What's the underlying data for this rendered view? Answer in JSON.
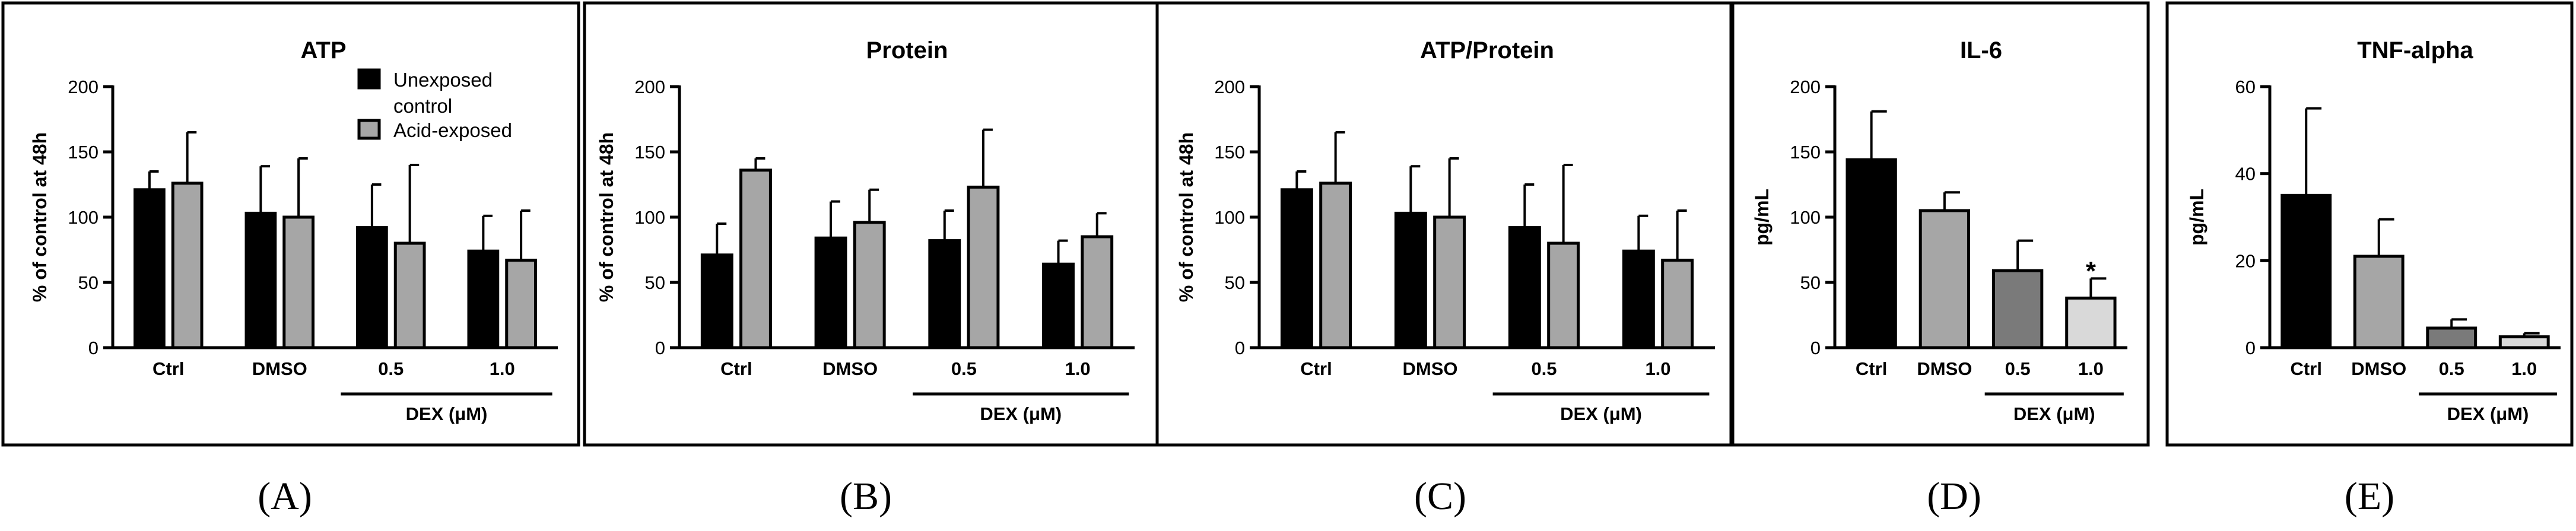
{
  "figure": {
    "panel_letters": [
      "(A)",
      "(B)",
      "(C)",
      "(D)",
      "(E)"
    ]
  },
  "chart_data": [
    {
      "type": "bar",
      "title": "ATP",
      "ylabel": "% of control at 48h",
      "xlabel": "",
      "ylim": [
        0,
        200
      ],
      "yticks": [
        0,
        50,
        100,
        150,
        200
      ],
      "categories": [
        "Ctrl",
        "DMSO",
        "0.5",
        "1.0"
      ],
      "group_label": "DEX (μM)",
      "group_categories": [
        "0.5",
        "1.0"
      ],
      "legend": [
        "Unexposed control",
        "Acid-exposed"
      ],
      "series": [
        {
          "name": "Unexposed control",
          "color": "#000000",
          "values": [
            121,
            103,
            92,
            74
          ],
          "errors": [
            14,
            36,
            33,
            27
          ]
        },
        {
          "name": "Acid-exposed",
          "color": "#a6a6a6",
          "values": [
            126,
            100,
            80,
            67
          ],
          "errors": [
            39,
            45,
            60,
            38
          ]
        }
      ]
    },
    {
      "type": "bar",
      "title": "Protein",
      "ylabel": "% of control at 48h",
      "xlabel": "",
      "ylim": [
        0,
        200
      ],
      "yticks": [
        0,
        50,
        100,
        150,
        200
      ],
      "categories": [
        "Ctrl",
        "DMSO",
        "0.5",
        "1.0"
      ],
      "group_label": "DEX (μM)",
      "group_categories": [
        "0.5",
        "1.0"
      ],
      "series": [
        {
          "name": "Unexposed control",
          "color": "#000000",
          "values": [
            71,
            84,
            82,
            64
          ],
          "errors": [
            24,
            28,
            23,
            18
          ]
        },
        {
          "name": "Acid-exposed",
          "color": "#a6a6a6",
          "values": [
            136,
            96,
            123,
            85
          ],
          "errors": [
            9,
            25,
            44,
            18
          ]
        }
      ]
    },
    {
      "type": "bar",
      "title": "ATP/Protein",
      "ylabel": "% of control at 48h",
      "xlabel": "",
      "ylim": [
        0,
        200
      ],
      "yticks": [
        0,
        50,
        100,
        150,
        200
      ],
      "categories": [
        "Ctrl",
        "DMSO",
        "0.5",
        "1.0"
      ],
      "group_label": "DEX (μM)",
      "group_categories": [
        "0.5",
        "1.0"
      ],
      "series": [
        {
          "name": "Unexposed control",
          "color": "#000000",
          "values": [
            121,
            103,
            92,
            74
          ],
          "errors": [
            14,
            36,
            33,
            27
          ]
        },
        {
          "name": "Acid-exposed",
          "color": "#a6a6a6",
          "values": [
            126,
            100,
            80,
            67
          ],
          "errors": [
            39,
            45,
            60,
            38
          ]
        }
      ]
    },
    {
      "type": "bar",
      "title": "IL-6",
      "ylabel": "pg/mL",
      "xlabel": "",
      "ylim": [
        0,
        200
      ],
      "yticks": [
        0,
        50,
        100,
        150,
        200
      ],
      "categories": [
        "Ctrl",
        "DMSO",
        "0.5",
        "1.0"
      ],
      "group_label": "DEX (μM)",
      "group_categories": [
        "0.5",
        "1.0"
      ],
      "significance": [
        "",
        "",
        "",
        "*"
      ],
      "series": [
        {
          "name": "IL-6",
          "colors": [
            "#000000",
            "#a6a6a6",
            "#7a7a7a",
            "#d9d9d9"
          ],
          "values": [
            144,
            105,
            59,
            38
          ],
          "errors": [
            37,
            14,
            23,
            15
          ]
        }
      ]
    },
    {
      "type": "bar",
      "title": "TNF-alpha",
      "ylabel": "pg/mL",
      "xlabel": "",
      "ylim": [
        0,
        60
      ],
      "yticks": [
        0,
        20,
        40,
        60
      ],
      "categories": [
        "Ctrl",
        "DMSO",
        "0.5",
        "1.0"
      ],
      "group_label": "DEX (μM)",
      "group_categories": [
        "0.5",
        "1.0"
      ],
      "series": [
        {
          "name": "TNF-alpha",
          "colors": [
            "#000000",
            "#a6a6a6",
            "#7a7a7a",
            "#d9d9d9"
          ],
          "values": [
            35,
            21,
            4.5,
            2.5
          ],
          "errors": [
            20,
            8.5,
            2,
            0.8
          ]
        }
      ]
    }
  ]
}
